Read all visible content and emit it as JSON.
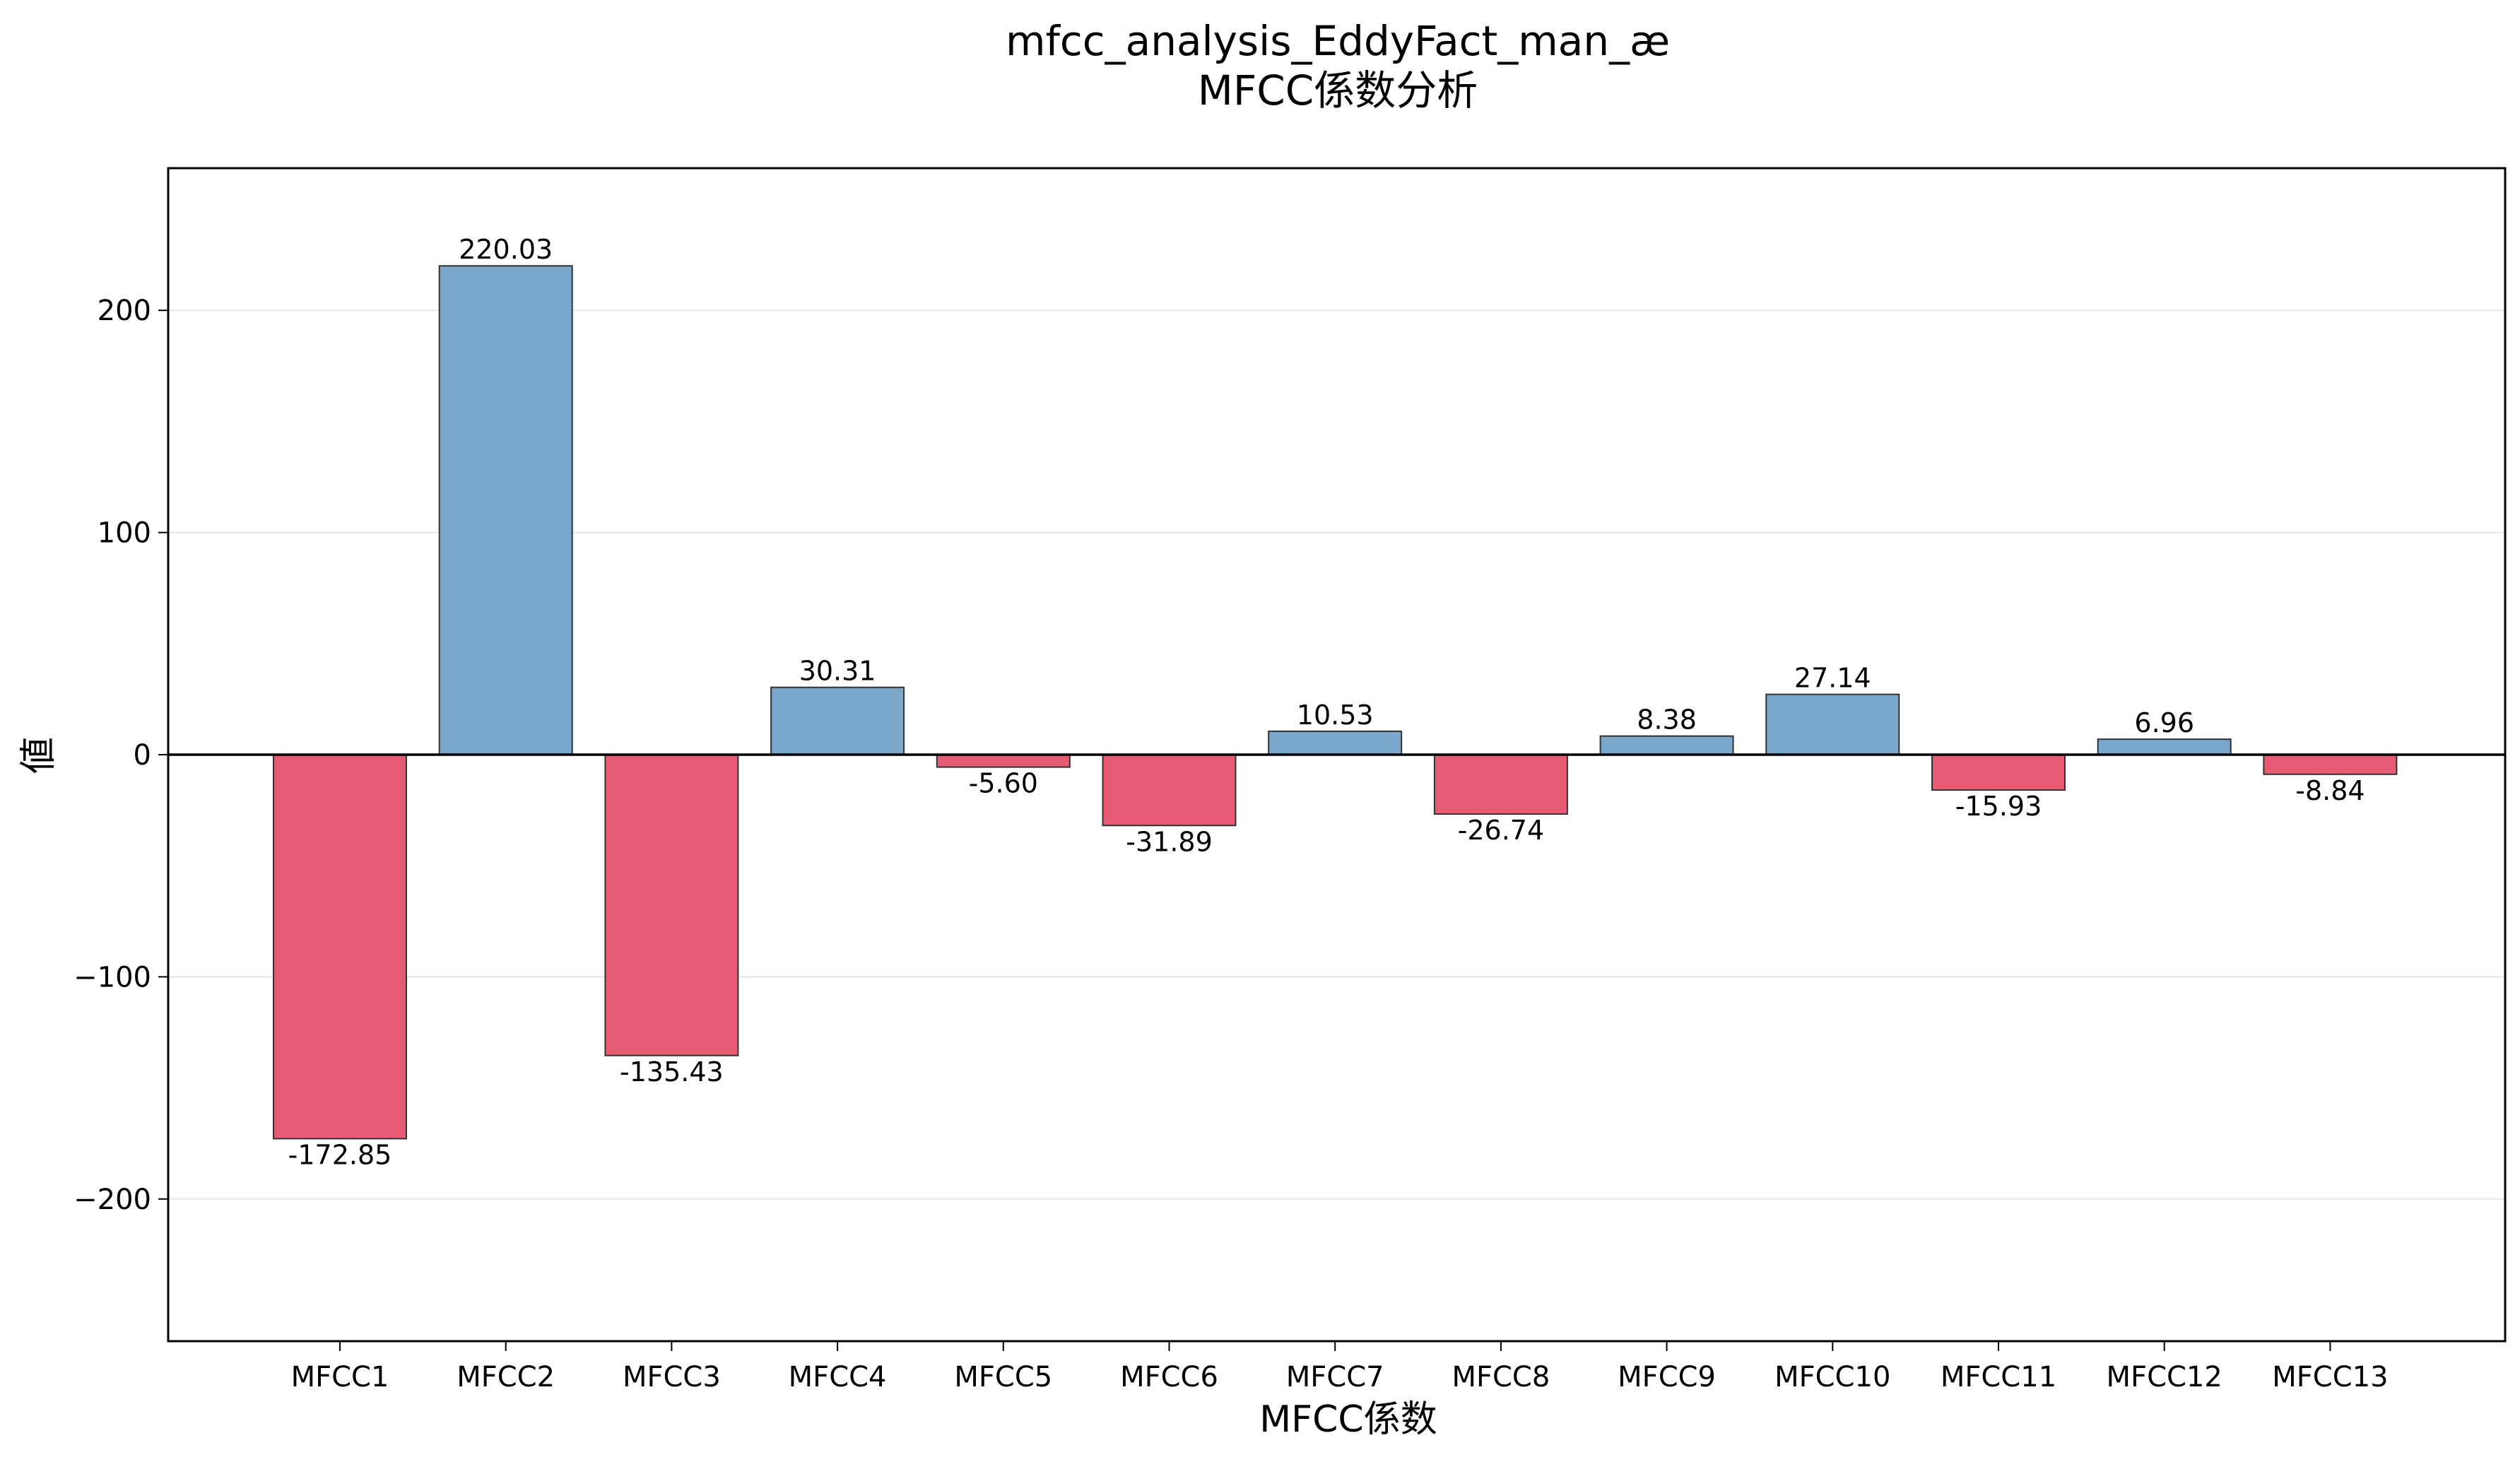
{
  "chart_data": {
    "type": "bar",
    "title_line1": "mfcc_analysis_EddyFact_man_æ",
    "title_line2": "MFCC係数分析",
    "xlabel": "MFCC係数",
    "ylabel": "値",
    "categories": [
      "MFCC1",
      "MFCC2",
      "MFCC3",
      "MFCC4",
      "MFCC5",
      "MFCC6",
      "MFCC7",
      "MFCC8",
      "MFCC9",
      "MFCC10",
      "MFCC11",
      "MFCC12",
      "MFCC13"
    ],
    "values": [
      -172.85,
      220.03,
      -135.43,
      30.31,
      -5.6,
      -31.89,
      10.53,
      -26.74,
      8.38,
      27.14,
      -15.93,
      6.96,
      -8.84
    ],
    "value_labels": [
      "-172.85",
      "220.03",
      "-135.43",
      "30.31",
      "-5.60",
      "-31.89",
      "10.53",
      "-26.74",
      "8.38",
      "27.14",
      "-15.93",
      "6.96",
      "-8.84"
    ],
    "ylim": [
      -264,
      264
    ],
    "yticks": [
      200,
      100,
      0,
      -100,
      -200
    ],
    "ytick_labels": [
      "200",
      "100",
      "0",
      "−100",
      "−200"
    ],
    "grid": "horizontal",
    "colors": {
      "positive": "#7ba7cb",
      "negative": "#e75a73",
      "edge": "#333333",
      "zero_line": "#000000",
      "grid": "#e6e6e6"
    }
  }
}
